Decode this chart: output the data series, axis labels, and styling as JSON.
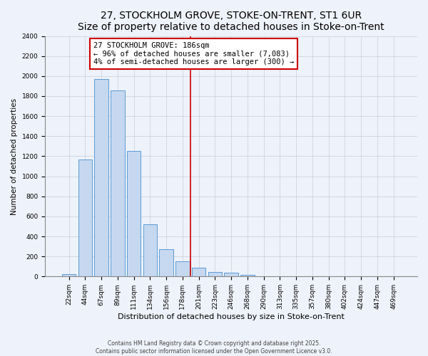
{
  "title": "27, STOCKHOLM GROVE, STOKE-ON-TRENT, ST1 6UR",
  "subtitle": "Size of property relative to detached houses in Stoke-on-Trent",
  "xlabel": "Distribution of detached houses by size in Stoke-on-Trent",
  "ylabel": "Number of detached properties",
  "bar_labels": [
    "22sqm",
    "44sqm",
    "67sqm",
    "89sqm",
    "111sqm",
    "134sqm",
    "156sqm",
    "178sqm",
    "201sqm",
    "223sqm",
    "246sqm",
    "268sqm",
    "290sqm",
    "313sqm",
    "335sqm",
    "357sqm",
    "380sqm",
    "402sqm",
    "424sqm",
    "447sqm",
    "469sqm"
  ],
  "bar_values": [
    25,
    1170,
    1970,
    1860,
    1250,
    520,
    275,
    155,
    90,
    45,
    35,
    20,
    5,
    2,
    1,
    1,
    0,
    0,
    0,
    0,
    0
  ],
  "bar_color": "#c5d8f0",
  "bar_edge_color": "#5b9bd5",
  "vline_position": 7.5,
  "vline_color": "#cc0000",
  "annotation_text": "27 STOCKHOLM GROVE: 186sqm\n← 96% of detached houses are smaller (7,083)\n4% of semi-detached houses are larger (300) →",
  "annotation_box_color": "#ffffff",
  "annotation_box_edge": "#cc0000",
  "ylim": [
    0,
    2400
  ],
  "yticks": [
    0,
    200,
    400,
    600,
    800,
    1000,
    1200,
    1400,
    1600,
    1800,
    2000,
    2200,
    2400
  ],
  "background_color": "#eef2fa",
  "grid_color": "#c8cdd8",
  "footer1": "Contains HM Land Registry data © Crown copyright and database right 2025.",
  "footer2": "Contains public sector information licensed under the Open Government Licence v3.0.",
  "title_fontsize": 10,
  "subtitle_fontsize": 8.5,
  "xlabel_fontsize": 8,
  "ylabel_fontsize": 7.5,
  "tick_fontsize": 6.5,
  "annotation_fontsize": 7.5,
  "footer_fontsize": 5.5
}
